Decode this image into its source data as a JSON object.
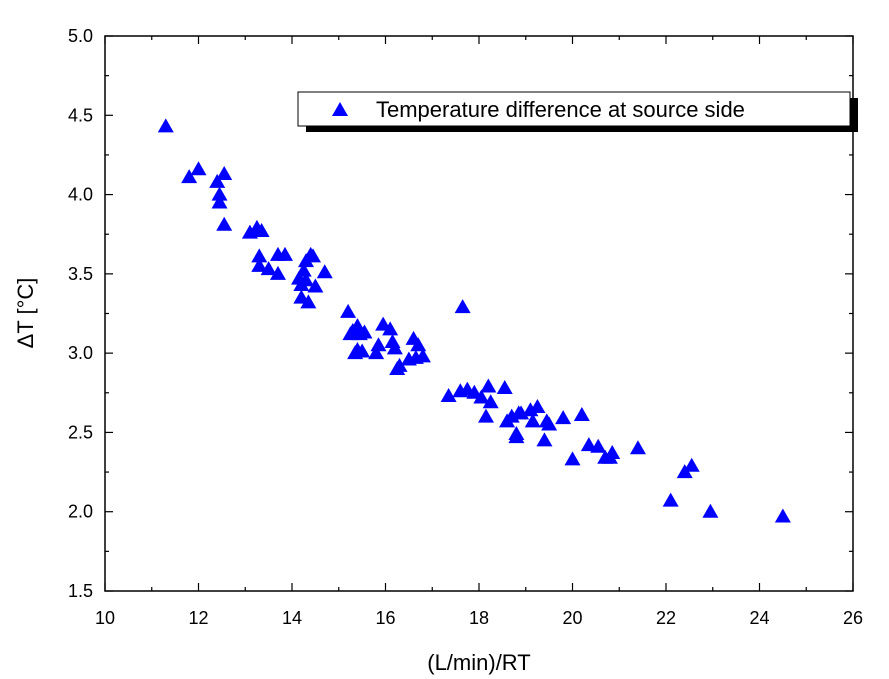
{
  "chart_data": {
    "type": "scatter",
    "title": "",
    "xlabel": "(L/min)/RT",
    "ylabel": "ΔT [°C]",
    "xlim": [
      10,
      26
    ],
    "ylim": [
      1.5,
      5.0
    ],
    "x_ticks": [
      10,
      12,
      14,
      16,
      18,
      20,
      22,
      24,
      26
    ],
    "y_ticks": [
      "1.5",
      "2.0",
      "2.5",
      "3.0",
      "3.5",
      "4.0",
      "4.5",
      "5.0"
    ],
    "legend_position": "top-right",
    "grid": false,
    "series": [
      {
        "name": "Temperature difference at source side",
        "marker": "triangle",
        "color": "#0000ff",
        "x": [
          11.3,
          11.8,
          12.0,
          12.4,
          12.45,
          12.45,
          12.55,
          12.55,
          13.1,
          13.25,
          13.3,
          13.3,
          13.35,
          13.5,
          13.7,
          13.7,
          13.85,
          14.15,
          14.2,
          14.2,
          14.25,
          14.3,
          14.3,
          14.35,
          14.4,
          14.45,
          14.5,
          14.7,
          15.2,
          15.25,
          15.3,
          15.35,
          15.4,
          15.4,
          15.45,
          15.5,
          15.55,
          15.8,
          15.85,
          15.95,
          16.1,
          16.15,
          16.2,
          16.25,
          16.3,
          16.5,
          16.6,
          16.65,
          16.7,
          16.8,
          17.35,
          17.6,
          17.65,
          17.75,
          17.9,
          18.05,
          18.15,
          18.2,
          18.25,
          18.55,
          18.6,
          18.7,
          18.8,
          18.8,
          18.85,
          18.9,
          19.1,
          19.15,
          19.25,
          19.4,
          19.45,
          19.5,
          19.8,
          20.0,
          20.2,
          20.35,
          20.55,
          20.7,
          20.8,
          20.85,
          21.4,
          22.1,
          22.4,
          22.55,
          22.95,
          24.5
        ],
        "y": [
          4.43,
          4.11,
          4.16,
          4.08,
          4.0,
          3.95,
          4.13,
          3.81,
          3.76,
          3.79,
          3.61,
          3.55,
          3.77,
          3.53,
          3.62,
          3.5,
          3.62,
          3.47,
          3.35,
          3.43,
          3.52,
          3.46,
          3.58,
          3.32,
          3.62,
          3.61,
          3.42,
          3.51,
          3.26,
          3.12,
          3.14,
          3.0,
          3.17,
          3.02,
          3.12,
          3.01,
          3.13,
          3.0,
          3.05,
          3.18,
          3.15,
          3.07,
          3.03,
          2.9,
          2.92,
          2.96,
          3.09,
          2.97,
          3.05,
          2.98,
          2.73,
          2.76,
          3.29,
          2.77,
          2.75,
          2.72,
          2.6,
          2.79,
          2.69,
          2.78,
          2.57,
          2.6,
          2.49,
          2.47,
          2.62,
          2.62,
          2.64,
          2.57,
          2.66,
          2.45,
          2.57,
          2.55,
          2.59,
          2.33,
          2.61,
          2.42,
          2.41,
          2.34,
          2.34,
          2.37,
          2.4,
          2.07,
          2.25,
          2.29,
          2.0,
          1.97
        ]
      }
    ]
  }
}
